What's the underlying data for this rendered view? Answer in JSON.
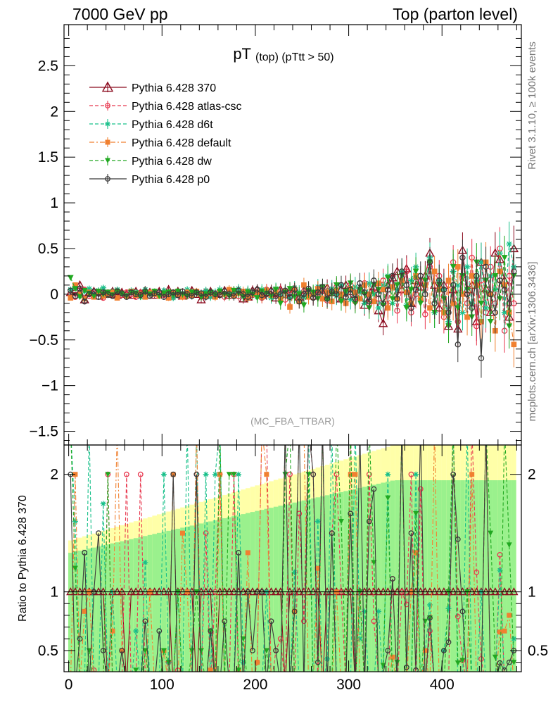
{
  "header": {
    "left": "7000 GeV pp",
    "right": "Top (parton level)"
  },
  "plot": {
    "title_main": "pT",
    "title_sub": "(top) (pTtt > 50)",
    "watermark": "(MC_FBA_TTBAR)",
    "side_top": "Rivet 3.1.10, ≥ 100k events",
    "side_bottom": "mcplots.cern.ch [arXiv:1306.3436]",
    "ratio_ylabel": "Ratio to Pythia 6.428 370"
  },
  "legend": [
    {
      "label": "Pythia 6.428 370",
      "color": "#8b0a1e",
      "marker": "open-triangle",
      "dash": "solid"
    },
    {
      "label": "Pythia 6.428 atlas-csc",
      "color": "#e8384f",
      "marker": "open-circle",
      "dash": "dashed"
    },
    {
      "label": "Pythia 6.428 d6t",
      "color": "#18c08a",
      "marker": "star",
      "dash": "dashed"
    },
    {
      "label": "Pythia 6.428 default",
      "color": "#f08030",
      "marker": "filled-square",
      "dash": "dashdot"
    },
    {
      "label": "Pythia 6.428 dw",
      "color": "#20a820",
      "marker": "filled-triangle-down",
      "dash": "dashed"
    },
    {
      "label": "Pythia 6.428 p0",
      "color": "#3a3a3a",
      "marker": "open-circle",
      "dash": "solid"
    }
  ],
  "chart_data": {
    "type": "line",
    "xlim": [
      -5,
      485
    ],
    "main": {
      "ylim": [
        -1.65,
        2.95
      ],
      "yticks": [
        -1.5,
        -1,
        -0.5,
        0,
        0.5,
        1,
        1.5,
        2,
        2.5
      ],
      "ytick_labels": [
        "−1.5",
        "−1",
        "−0.5",
        "0",
        "0.5",
        "1",
        "1.5",
        "2",
        "2.5"
      ]
    },
    "ratio": {
      "ylim": [
        0.32,
        2.25
      ],
      "yticks": [
        0.5,
        1,
        2
      ],
      "ytick_labels": [
        "0.5",
        "1",
        "2"
      ],
      "reference_line": 1
    },
    "xticks": [
      0,
      100,
      200,
      300,
      400
    ],
    "xtick_labels": [
      "0",
      "100",
      "200",
      "300",
      "400"
    ],
    "x": [
      2,
      7,
      12,
      17,
      22,
      27,
      32,
      37,
      42,
      47,
      52,
      57,
      62,
      67,
      72,
      77,
      82,
      87,
      92,
      97,
      102,
      107,
      112,
      117,
      122,
      127,
      132,
      137,
      142,
      147,
      152,
      157,
      162,
      167,
      172,
      177,
      182,
      187,
      192,
      197,
      202,
      207,
      212,
      217,
      222,
      227,
      232,
      237,
      242,
      247,
      252,
      257,
      262,
      267,
      272,
      277,
      282,
      287,
      292,
      297,
      302,
      307,
      312,
      317,
      322,
      327,
      332,
      337,
      342,
      347,
      352,
      357,
      362,
      367,
      372,
      377,
      382,
      387,
      392,
      397,
      402,
      407,
      412,
      417,
      422,
      427,
      432,
      437,
      442,
      447,
      452,
      457,
      462,
      467,
      472,
      477
    ],
    "series": [
      {
        "name": "Pythia 6.428 370",
        "values": [
          0.02,
          0.05,
          0.1,
          -0.06,
          0.02,
          0.03,
          -0.02,
          0.04,
          0.0,
          0.03,
          -0.01,
          0.02,
          0.0,
          -0.01,
          0.03,
          0.01,
          0.04,
          0.02,
          -0.01,
          0.03,
          0.02,
          0.05,
          0.0,
          0.03,
          -0.02,
          0.02,
          0.04,
          0.0,
          -0.06,
          0.02,
          0.03,
          0.0,
          0.01,
          0.04,
          -0.01,
          0.02,
          0.03,
          -0.05,
          -0.03,
          0.04,
          0.05,
          -0.01,
          0.02,
          0.04,
          -0.04,
          0.05,
          0.0,
          0.02,
          0.06,
          -0.03,
          0.04,
          0.02,
          -0.02,
          0.05,
          0.0,
          0.07,
          0.02,
          0.04,
          -0.05,
          0.1,
          0.03,
          0.0,
          0.05,
          -0.12,
          -0.05,
          0.08,
          -0.18,
          -0.32,
          0.1,
          0.18,
          0.25,
          0.05,
          0.28,
          -0.1,
          0.15,
          0.08,
          0.2,
          0.45,
          0.1,
          -0.15,
          0.1,
          -0.35,
          0.05,
          -0.38,
          0.48,
          0.05,
          0.1,
          -0.3,
          0.35,
          0.06,
          -0.2,
          0.45,
          0.38,
          0.15,
          -0.25,
          0.5
        ]
      },
      {
        "name": "Pythia 6.428 atlas-csc",
        "values": [
          0.0,
          -0.03,
          0.02,
          0.05,
          -0.02,
          0.01,
          0.03,
          -0.04,
          0.02,
          0.0,
          0.04,
          -0.01,
          0.02,
          0.0,
          -0.03,
          0.02,
          0.01,
          -0.02,
          0.03,
          0.0,
          -0.01,
          0.02,
          -0.03,
          0.01,
          0.03,
          -0.02,
          0.0,
          0.02,
          -0.01,
          0.03,
          -0.02,
          0.01,
          0.02,
          -0.03,
          0.0,
          0.04,
          -0.02,
          0.01,
          0.03,
          -0.01,
          0.02,
          -0.04,
          0.05,
          0.0,
          -0.02,
          0.03,
          -0.06,
          0.04,
          0.0,
          -0.05,
          0.03,
          0.06,
          -0.04,
          0.0,
          0.05,
          -0.07,
          0.03,
          0.08,
          -0.05,
          0.0,
          0.1,
          -0.08,
          0.05,
          0.12,
          -0.1,
          0.06,
          -0.05,
          0.15,
          -0.12,
          0.2,
          -0.18,
          0.05,
          0.25,
          -0.2,
          0.0,
          0.15,
          -0.22,
          0.3,
          -0.1,
          0.2,
          -0.25,
          0.1,
          0.35,
          -0.3,
          0.2,
          -0.1,
          0.4,
          -0.35,
          0.15,
          -0.2,
          0.3,
          -0.1,
          0.5,
          -0.4,
          0.2,
          -0.1
        ]
      },
      {
        "name": "Pythia 6.428 d6t",
        "values": [
          0.05,
          0.08,
          -0.02,
          0.03,
          0.06,
          0.0,
          0.04,
          0.07,
          -0.01,
          0.03,
          0.05,
          0.01,
          -0.02,
          0.04,
          0.02,
          -0.03,
          0.05,
          0.0,
          0.03,
          -0.01,
          0.04,
          0.02,
          -0.04,
          0.03,
          0.01,
          0.05,
          -0.02,
          0.03,
          0.0,
          0.04,
          -0.03,
          0.02,
          0.05,
          -0.01,
          0.03,
          0.0,
          0.06,
          -0.02,
          0.04,
          0.01,
          -0.03,
          0.05,
          0.02,
          -0.04,
          0.06,
          0.0,
          0.03,
          -0.05,
          0.07,
          0.02,
          -0.03,
          0.05,
          0.0,
          0.08,
          -0.04,
          0.03,
          0.06,
          -0.02,
          0.1,
          0.0,
          -0.06,
          0.08,
          0.03,
          -0.1,
          0.12,
          0.0,
          -0.15,
          0.1,
          0.2,
          -0.1,
          0.05,
          0.25,
          -0.12,
          0.15,
          0.3,
          -0.05,
          0.1,
          0.4,
          -0.2,
          0.15,
          0.05,
          -0.3,
          0.25,
          0.1,
          -0.2,
          0.3,
          -0.1,
          0.15,
          0.35,
          -0.15,
          0.2,
          0.05,
          0.45,
          -0.2,
          0.55,
          0.3
        ]
      },
      {
        "name": "Pythia 6.428 default",
        "values": [
          -0.04,
          0.1,
          0.0,
          -0.05,
          0.02,
          -0.03,
          0.03,
          -0.02,
          0.0,
          0.02,
          -0.04,
          0.01,
          -0.02,
          0.03,
          -0.01,
          0.0,
          -0.03,
          0.02,
          0.0,
          -0.02,
          0.01,
          -0.04,
          0.02,
          0.0,
          -0.03,
          0.02,
          -0.01,
          0.03,
          0.0,
          -0.02,
          0.01,
          -0.03,
          0.02,
          0.0,
          0.05,
          -0.02,
          0.01,
          0.03,
          -0.04,
          0.0,
          0.02,
          -0.03,
          0.04,
          -0.01,
          0.02,
          -0.05,
          0.03,
          -0.14,
          0.05,
          -0.08,
          0.1,
          -0.03,
          0.0,
          0.06,
          -0.05,
          0.02,
          -0.08,
          0.04,
          0.0,
          -0.1,
          0.06,
          0.02,
          -0.05,
          0.1,
          0.0,
          -0.08,
          0.12,
          0.05,
          -0.15,
          0.08,
          -0.05,
          0.15,
          0.02,
          -0.1,
          0.2,
          -0.05,
          0.1,
          -0.15,
          0.25,
          0.05,
          -0.2,
          0.15,
          -0.1,
          0.3,
          0.0,
          -0.25,
          0.2,
          0.1,
          -0.3,
          0.35,
          0.0,
          -0.4,
          0.25,
          0.1,
          -0.2,
          -0.55
        ]
      },
      {
        "name": "Pythia 6.428 dw",
        "values": [
          0.18,
          0.06,
          -0.03,
          0.04,
          0.01,
          -0.02,
          0.03,
          0.0,
          0.02,
          -0.01,
          0.03,
          0.0,
          -0.02,
          0.02,
          0.01,
          -0.03,
          0.02,
          0.0,
          0.03,
          -0.02,
          0.01,
          0.02,
          -0.01,
          0.03,
          0.0,
          -0.02,
          0.02,
          0.01,
          -0.03,
          0.0,
          0.02,
          -0.01,
          0.03,
          0.0,
          -0.02,
          0.04,
          0.01,
          -0.03,
          0.02,
          0.0,
          -0.04,
          0.03,
          0.01,
          -0.02,
          0.05,
          -0.1,
          0.02,
          0.06,
          -0.03,
          0.0,
          -0.12,
          0.04,
          0.02,
          -0.05,
          0.08,
          -0.06,
          0.0,
          0.1,
          -0.08,
          0.03,
          0.12,
          -0.1,
          0.05,
          0.0,
          -0.15,
          0.1,
          0.05,
          -0.12,
          0.18,
          -0.05,
          0.1,
          0.2,
          -0.15,
          0.05,
          0.25,
          -0.1,
          0.15,
          0.35,
          -0.2,
          0.1,
          -0.05,
          -0.35,
          0.3,
          -0.15,
          0.2,
          0.05,
          -0.25,
          0.35,
          -0.1,
          0.15,
          -0.3,
          0.2,
          -0.05,
          0.4,
          -0.35,
          0.2
        ]
      },
      {
        "name": "Pythia 6.428 p0",
        "values": [
          0.04,
          -0.02,
          0.06,
          -0.08,
          0.0,
          0.03,
          -0.03,
          0.02,
          0.0,
          -0.02,
          0.03,
          0.01,
          -0.03,
          0.02,
          0.0,
          -0.01,
          0.03,
          -0.02,
          0.01,
          0.02,
          -0.03,
          0.0,
          0.02,
          -0.01,
          0.03,
          0.0,
          -0.02,
          0.02,
          0.01,
          -0.03,
          0.02,
          0.0,
          -0.01,
          0.03,
          0.0,
          -0.02,
          0.04,
          0.0,
          -0.03,
          0.02,
          0.05,
          -0.01,
          0.0,
          0.03,
          -0.02,
          0.0,
          0.04,
          -0.03,
          0.05,
          -0.08,
          0.0,
          0.06,
          -0.04,
          0.02,
          0.08,
          -0.05,
          0.03,
          0.0,
          0.1,
          -0.03,
          0.05,
          -0.05,
          0.12,
          0.02,
          -0.08,
          0.15,
          0.0,
          -0.1,
          0.05,
          0.2,
          -0.05,
          0.25,
          0.1,
          -0.15,
          0.05,
          0.2,
          0.0,
          0.35,
          -0.1,
          0.15,
          0.05,
          -0.2,
          0.1,
          -0.55,
          0.4,
          0.0,
          -0.15,
          0.2,
          -0.7,
          0.3,
          0.0,
          -0.2,
          0.15,
          0.05,
          -0.1,
          0.25
        ]
      }
    ]
  }
}
